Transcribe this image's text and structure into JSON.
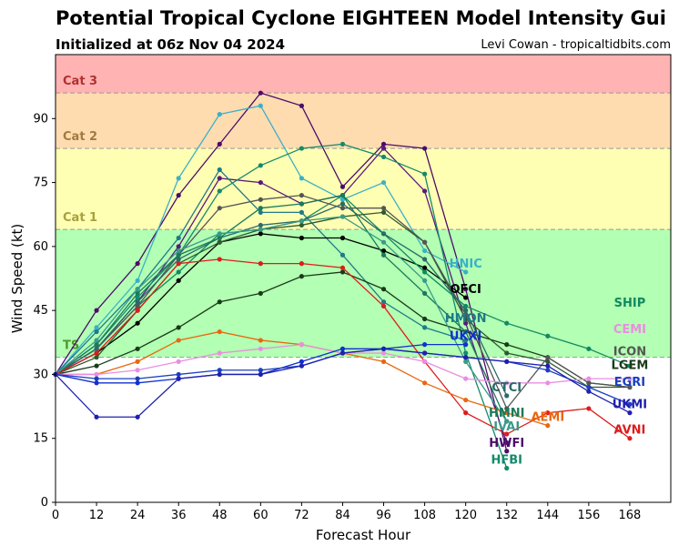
{
  "header": {
    "title": "Potential Tropical Cyclone EIGHTEEN Model Intensity Gui",
    "subtitle": "Initialized at 06z Nov 04 2024",
    "credit": "Levi Cowan - tropicaltidbits.com"
  },
  "chart_data": {
    "type": "line",
    "xlabel": "Forecast Hour",
    "ylabel": "Wind Speed (kt)",
    "xlim": [
      0,
      180
    ],
    "ylim": [
      0,
      105
    ],
    "xticks": [
      0,
      12,
      24,
      36,
      48,
      60,
      72,
      84,
      96,
      108,
      120,
      132,
      144,
      156,
      168
    ],
    "yticks": [
      0,
      15,
      30,
      45,
      60,
      75,
      90
    ],
    "grid": false,
    "bands": [
      {
        "label": "TS",
        "from": 34,
        "to": 64,
        "color": "#b3ffb3",
        "label_color": "#4c9a2a"
      },
      {
        "label": "Cat 1",
        "from": 64,
        "to": 83,
        "color": "#ffffb3",
        "label_color": "#a6a040"
      },
      {
        "label": "Cat 2",
        "from": 83,
        "to": 96,
        "color": "#ffdcb0",
        "label_color": "#a07a40"
      },
      {
        "label": "Cat 3",
        "from": 96,
        "to": 105,
        "color": "#ffb3b3",
        "label_color": "#b03030"
      }
    ],
    "series": [
      {
        "name": "HWFI",
        "color": "#4b0c6b",
        "x": [
          0,
          12,
          24,
          36,
          48,
          60,
          72,
          84,
          96,
          108,
          120,
          132
        ],
        "y": [
          30,
          45,
          56,
          72,
          84,
          96,
          93,
          74,
          84,
          83,
          50,
          12
        ]
      },
      {
        "name": "",
        "color": "#5a1a7a",
        "x": [
          0,
          12,
          24,
          36,
          48,
          60,
          72,
          84,
          96,
          108,
          120,
          132
        ],
        "y": [
          30,
          36,
          47,
          60,
          76,
          75,
          70,
          72,
          83,
          73,
          42,
          14
        ]
      },
      {
        "name": "HNIC",
        "color": "#3ab0c8",
        "x": [
          0,
          12,
          24,
          36,
          48,
          60,
          72,
          84,
          96,
          108,
          120
        ],
        "y": [
          30,
          41,
          52,
          76,
          91,
          93,
          76,
          71,
          75,
          59,
          54
        ]
      },
      {
        "name": "HFBI",
        "color": "#138a6a",
        "x": [
          0,
          12,
          24,
          36,
          48,
          60,
          72,
          84,
          96,
          108,
          120,
          132
        ],
        "y": [
          30,
          37,
          48,
          58,
          73,
          79,
          83,
          84,
          81,
          77,
          35,
          8
        ]
      },
      {
        "name": "HMON",
        "color": "#1f7a8a",
        "x": [
          0,
          12,
          24,
          36,
          48,
          60,
          72,
          84,
          96,
          108,
          120
        ],
        "y": [
          30,
          40,
          50,
          62,
          78,
          68,
          68,
          58,
          47,
          41,
          38
        ]
      },
      {
        "name": "OFCI",
        "color": "#000000",
        "x": [
          0,
          12,
          24,
          36,
          48,
          60,
          72,
          84,
          96,
          108,
          120
        ],
        "y": [
          30,
          35,
          42,
          52,
          61,
          63,
          62,
          62,
          59,
          55,
          48
        ]
      },
      {
        "name": "SHIP",
        "color": "#108a60",
        "x": [
          0,
          12,
          24,
          36,
          48,
          60,
          72,
          84,
          96,
          108,
          120,
          132,
          144,
          156,
          168
        ],
        "y": [
          30,
          36,
          46,
          54,
          63,
          64,
          66,
          72,
          63,
          54,
          46,
          42,
          39,
          36,
          32
        ]
      },
      {
        "name": "LGEM",
        "color": "#1a3a1a",
        "x": [
          0,
          12,
          24,
          36,
          48,
          60,
          72,
          84,
          96,
          108,
          120,
          132,
          144,
          156,
          168
        ],
        "y": [
          30,
          32,
          36,
          41,
          47,
          49,
          53,
          54,
          50,
          43,
          40,
          37,
          34,
          28,
          27
        ]
      },
      {
        "name": "",
        "color": "#2e5a2e",
        "x": [
          0,
          12,
          24,
          36,
          48,
          60,
          72,
          84,
          96,
          108,
          120,
          132,
          144,
          156,
          168
        ],
        "y": [
          30,
          34,
          45,
          56,
          61,
          64,
          65,
          67,
          68,
          61,
          43,
          35,
          33,
          27,
          27
        ]
      },
      {
        "name": "ICON",
        "color": "#555555",
        "x": [
          0,
          12,
          24,
          36,
          48,
          60,
          72,
          84,
          96,
          108,
          120,
          132,
          144,
          156,
          168
        ],
        "y": [
          30,
          36,
          46,
          58,
          69,
          71,
          72,
          69,
          69,
          61,
          44,
          22,
          34,
          28,
          27
        ]
      },
      {
        "name": "CTCI",
        "color": "#2a6a6a",
        "x": [
          0,
          12,
          24,
          36,
          48,
          60,
          72,
          84,
          96,
          108,
          120,
          132
        ],
        "y": [
          30,
          36,
          47,
          57,
          62,
          65,
          66,
          70,
          63,
          57,
          45,
          25
        ]
      },
      {
        "name": "HMNI",
        "color": "#1a7a5a",
        "x": [
          0,
          12,
          24,
          36,
          48,
          60,
          72,
          84,
          96,
          108,
          120,
          132
        ],
        "y": [
          30,
          37,
          49,
          58,
          62,
          69,
          70,
          72,
          58,
          49,
          40,
          19
        ]
      },
      {
        "name": "IVAI",
        "color": "#3a9a8a",
        "x": [
          0,
          12,
          24,
          36,
          48,
          60,
          72,
          84,
          96,
          108,
          120,
          132
        ],
        "y": [
          30,
          38,
          50,
          59,
          63,
          64,
          66,
          67,
          61,
          52,
          33,
          19
        ]
      },
      {
        "name": "AVNI",
        "color": "#dd1c1c",
        "x": [
          0,
          12,
          24,
          36,
          48,
          60,
          72,
          84,
          96,
          108,
          120,
          132,
          144,
          156,
          168
        ],
        "y": [
          30,
          35,
          45,
          56,
          57,
          56,
          56,
          55,
          46,
          33,
          21,
          16,
          21,
          22,
          15
        ]
      },
      {
        "name": "AEMI",
        "color": "#e8680f",
        "x": [
          0,
          12,
          24,
          36,
          48,
          60,
          72,
          84,
          96,
          108,
          120,
          132,
          144
        ],
        "y": [
          30,
          30,
          33,
          38,
          40,
          38,
          37,
          35,
          33,
          28,
          24,
          21,
          18
        ]
      },
      {
        "name": "CEMI",
        "color": "#ea8ee0",
        "x": [
          0,
          12,
          24,
          36,
          48,
          60,
          72,
          84,
          96,
          108,
          120,
          132,
          144,
          156,
          168
        ],
        "y": [
          30,
          30,
          31,
          33,
          35,
          36,
          37,
          35,
          35,
          33,
          29,
          28,
          28,
          29,
          29
        ]
      },
      {
        "name": "UKXI",
        "color": "#1030d0",
        "x": [
          0,
          12,
          24,
          36,
          48,
          60,
          72,
          84,
          96,
          108,
          120
        ],
        "y": [
          30,
          28,
          28,
          29,
          30,
          30,
          33,
          36,
          36,
          37,
          37
        ]
      },
      {
        "name": "EGRI",
        "color": "#1a40c0",
        "x": [
          0,
          12,
          24,
          36,
          48,
          60,
          72,
          84,
          96,
          108,
          120,
          132,
          144,
          156,
          168
        ],
        "y": [
          30,
          29,
          29,
          30,
          31,
          31,
          32,
          35,
          36,
          35,
          34,
          33,
          31,
          27,
          23
        ]
      },
      {
        "name": "UKMI",
        "color": "#2020b0",
        "x": [
          0,
          12,
          24,
          36,
          48,
          60,
          72,
          84,
          96,
          108,
          120,
          132,
          144,
          156,
          168
        ],
        "y": [
          30,
          20,
          20,
          29,
          30,
          30,
          32,
          35,
          36,
          35,
          34,
          33,
          32,
          26,
          21
        ]
      }
    ]
  }
}
